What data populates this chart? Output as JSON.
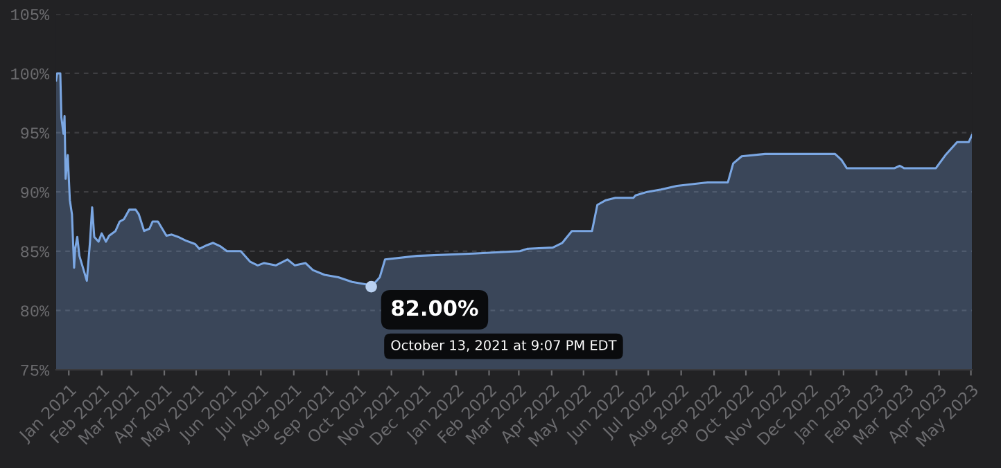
{
  "chart_data": {
    "type": "area",
    "x": [
      "2020-12-20",
      "2020-12-21",
      "2020-12-24",
      "2020-12-25",
      "2020-12-27",
      "2020-12-28",
      "2020-12-29",
      "2020-12-31",
      "2021-01-02",
      "2021-01-04",
      "2021-01-06",
      "2021-01-07",
      "2021-01-09",
      "2021-01-11",
      "2021-01-13",
      "2021-01-15",
      "2021-01-18",
      "2021-01-21",
      "2021-01-23",
      "2021-01-25",
      "2021-01-29",
      "2021-02-01",
      "2021-02-05",
      "2021-02-08",
      "2021-02-14",
      "2021-02-18",
      "2021-02-22",
      "2021-02-27",
      "2021-03-05",
      "2021-03-08",
      "2021-03-13",
      "2021-03-18",
      "2021-03-21",
      "2021-03-26",
      "2021-03-30",
      "2021-04-03",
      "2021-04-08",
      "2021-04-14",
      "2021-04-21",
      "2021-04-30",
      "2021-05-04",
      "2021-05-11",
      "2021-05-17",
      "2021-05-24",
      "2021-05-30",
      "2021-06-12",
      "2021-06-21",
      "2021-06-28",
      "2021-07-04",
      "2021-07-15",
      "2021-07-26",
      "2021-08-02",
      "2021-08-12",
      "2021-08-19",
      "2021-08-30",
      "2021-09-12",
      "2021-09-25",
      "2021-10-08",
      "2021-10-13",
      "2021-10-21",
      "2021-10-26",
      "2021-11-25",
      "2022-01-17",
      "2022-03-02",
      "2022-03-09",
      "2022-04-02",
      "2022-04-11",
      "2022-04-20",
      "2022-05-09",
      "2022-05-14",
      "2022-05-22",
      "2022-05-31",
      "2022-06-17",
      "2022-06-19",
      "2022-06-30",
      "2022-07-13",
      "2022-07-28",
      "2022-08-26",
      "2022-09-14",
      "2022-09-19",
      "2022-09-27",
      "2022-10-19",
      "2022-12-24",
      "2022-12-30",
      "2023-01-04",
      "2023-02-18",
      "2023-02-23",
      "2023-02-27",
      "2023-03-29",
      "2023-04-07",
      "2023-04-18",
      "2023-04-29",
      "2023-05-02"
    ],
    "series": [
      {
        "color": "#7ba7e3",
        "values": [
          99.4,
          100,
          100,
          96.3,
          94.9,
          96.4,
          91.1,
          93.1,
          89.3,
          88.1,
          83.6,
          85.2,
          86.2,
          84.6,
          84.0,
          83.4,
          82.5,
          85.8,
          88.7,
          86.2,
          85.8,
          86.5,
          85.8,
          86.3,
          86.7,
          87.5,
          87.7,
          88.5,
          88.5,
          88.1,
          86.7,
          86.9,
          87.5,
          87.5,
          86.9,
          86.3,
          86.4,
          86.2,
          85.9,
          85.6,
          85.2,
          85.5,
          85.7,
          85.4,
          85.0,
          85.0,
          84.1,
          83.8,
          84.0,
          83.8,
          84.3,
          83.8,
          84.0,
          83.4,
          83.0,
          82.8,
          82.4,
          82.2,
          82.0,
          82.8,
          84.3,
          84.6,
          84.8,
          85.0,
          85.2,
          85.3,
          85.7,
          86.7,
          86.7,
          88.9,
          89.3,
          89.5,
          89.5,
          89.7,
          90.0,
          90.2,
          90.5,
          90.8,
          90.8,
          92.4,
          93.0,
          93.2,
          93.2,
          92.7,
          92.0,
          92.0,
          92.2,
          92.0,
          92.0,
          93.1,
          94.2,
          94.2,
          94.8
        ]
      }
    ],
    "xlim": [
      "2020-12-20",
      "2023-05-02"
    ],
    "ylim": [
      75,
      105
    ],
    "yticks": [
      {
        "value": 75,
        "label": "75%"
      },
      {
        "value": 80,
        "label": "80%"
      },
      {
        "value": 85,
        "label": "85%"
      },
      {
        "value": 90,
        "label": "90%"
      },
      {
        "value": 95,
        "label": "95%"
      },
      {
        "value": 100,
        "label": "100%"
      },
      {
        "value": 105,
        "label": "105%"
      }
    ],
    "xticks": [
      {
        "value": "2021-01-01",
        "label": "Jan 2021"
      },
      {
        "value": "2021-02-01",
        "label": "Feb 2021"
      },
      {
        "value": "2021-03-01",
        "label": "Mar 2021"
      },
      {
        "value": "2021-04-01",
        "label": "Apr 2021"
      },
      {
        "value": "2021-05-01",
        "label": "May 2021"
      },
      {
        "value": "2021-06-01",
        "label": "Jun 2021"
      },
      {
        "value": "2021-07-01",
        "label": "Jul 2021"
      },
      {
        "value": "2021-08-01",
        "label": "Aug 2021"
      },
      {
        "value": "2021-09-01",
        "label": "Sep 2021"
      },
      {
        "value": "2021-10-01",
        "label": "Oct 2021"
      },
      {
        "value": "2021-11-01",
        "label": "Nov 2021"
      },
      {
        "value": "2021-12-01",
        "label": "Dec 2021"
      },
      {
        "value": "2022-01-01",
        "label": "Jan 2022"
      },
      {
        "value": "2022-02-01",
        "label": "Feb 2022"
      },
      {
        "value": "2022-03-01",
        "label": "Mar 2022"
      },
      {
        "value": "2022-04-01",
        "label": "Apr 2022"
      },
      {
        "value": "2022-05-01",
        "label": "May 2022"
      },
      {
        "value": "2022-06-01",
        "label": "Jun 2022"
      },
      {
        "value": "2022-07-01",
        "label": "Jul 2022"
      },
      {
        "value": "2022-08-01",
        "label": "Aug 2022"
      },
      {
        "value": "2022-09-01",
        "label": "Sep 2022"
      },
      {
        "value": "2022-10-01",
        "label": "Oct 2022"
      },
      {
        "value": "2022-11-01",
        "label": "Nov 2022"
      },
      {
        "value": "2022-12-01",
        "label": "Dec 2022"
      },
      {
        "value": "2023-01-01",
        "label": "Jan 2023"
      },
      {
        "value": "2023-02-01",
        "label": "Feb 2023"
      },
      {
        "value": "2023-03-01",
        "label": "Mar 2023"
      },
      {
        "value": "2023-04-01",
        "label": "Apr 2023"
      },
      {
        "value": "2023-05-01",
        "label": "May 2023"
      }
    ],
    "grid": "y",
    "annotations": [
      {
        "text": "82.00%\nOctober 13, 2021 at 9:07 PM EDT",
        "x": "2021-10-13",
        "y": 82.0
      }
    ]
  }
}
